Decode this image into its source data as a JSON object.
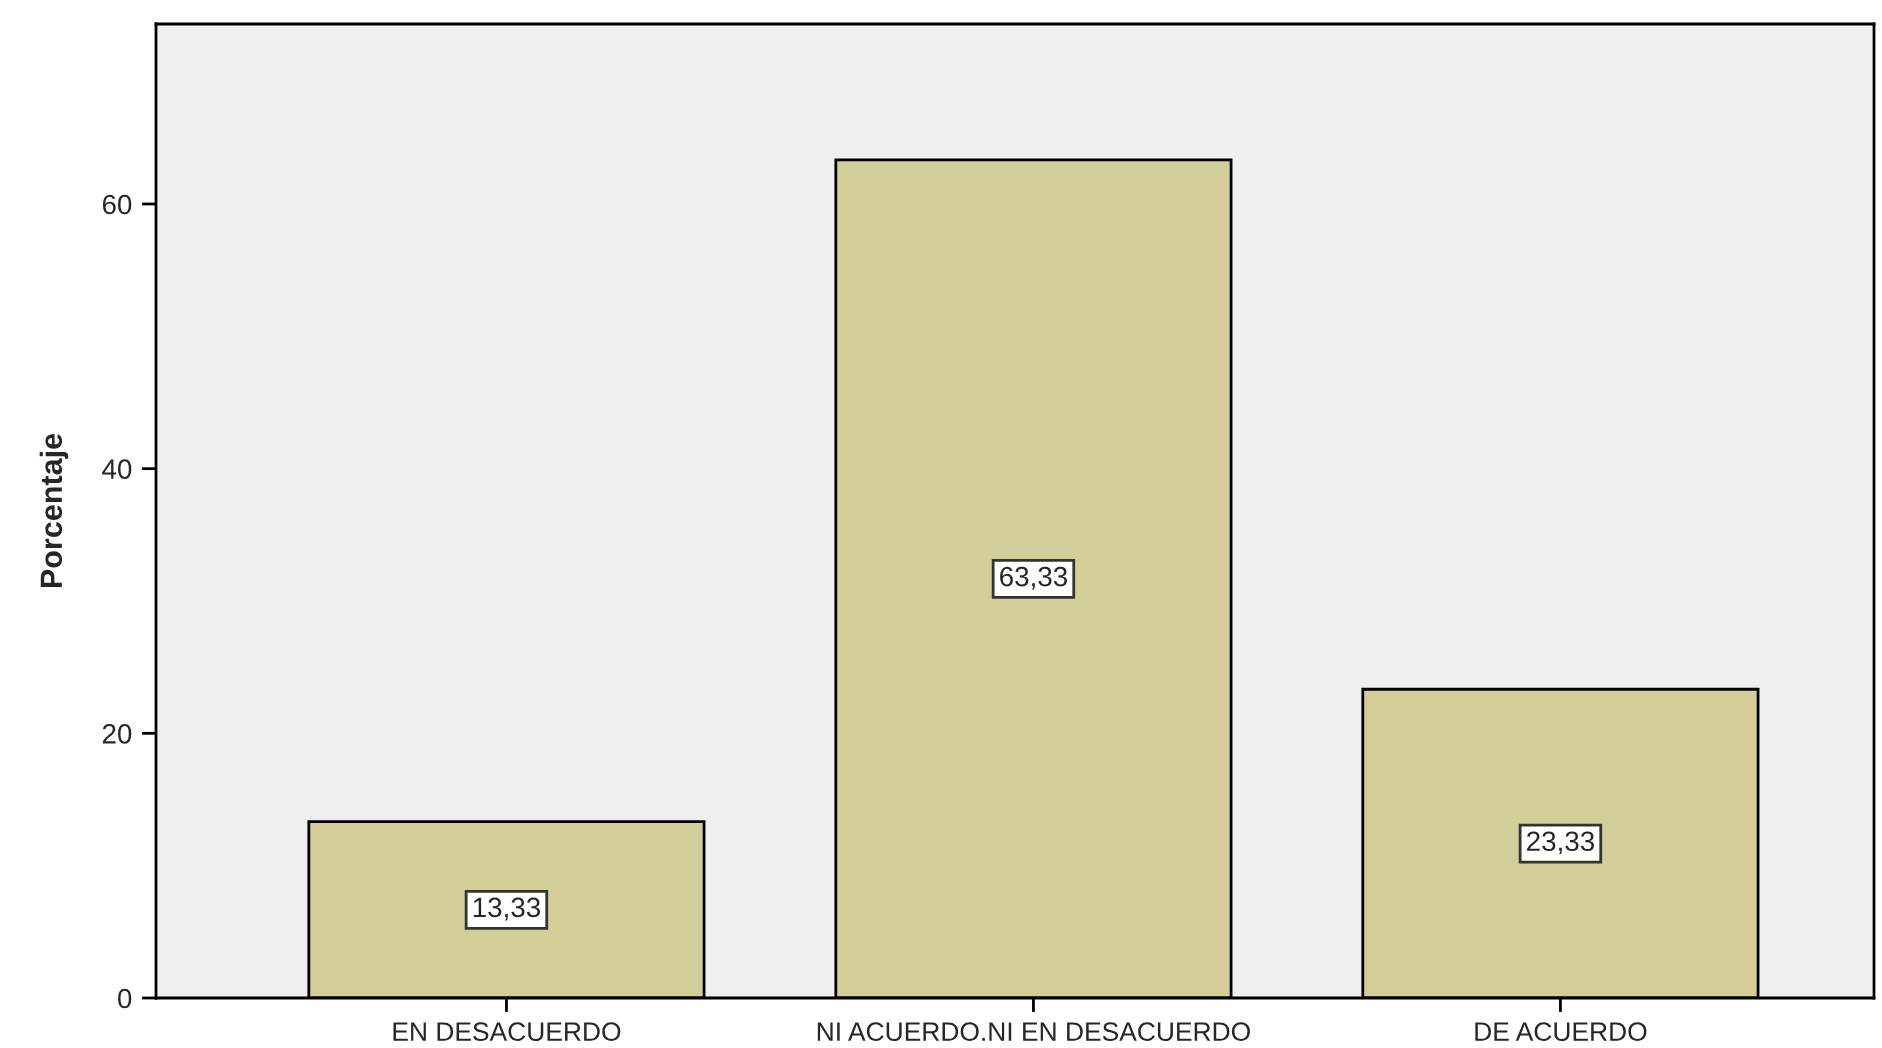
{
  "chart_data": {
    "type": "bar",
    "ylabel": "Porcentaje",
    "categories": [
      "EN DESACUERDO",
      "NI ACUERDO.NI EN DESACUERDO",
      "DE ACUERDO"
    ],
    "values": [
      13.33,
      63.33,
      23.33
    ],
    "value_labels": [
      "13,33",
      "63,33",
      "23,33"
    ],
    "color": "#d3ce97",
    "ylim": [
      0,
      73.6
    ],
    "yticks": [
      0,
      20,
      40,
      60
    ],
    "grid": false,
    "legend": false
  }
}
